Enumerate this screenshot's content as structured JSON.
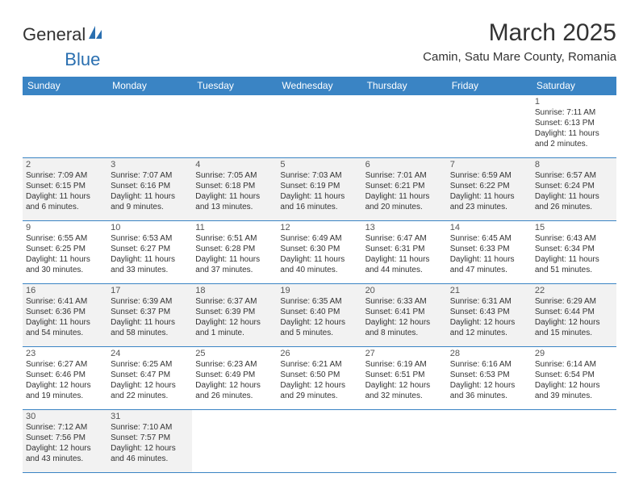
{
  "brand": {
    "part1": "General",
    "part2": "Blue",
    "icon_color": "#2a6fb0"
  },
  "title": "March 2025",
  "location": "Camin, Satu Mare County, Romania",
  "header_bg": "#3a84c4",
  "header_text": "#ffffff",
  "grid_line": "#3a84c4",
  "shade_bg": "#f2f2f2",
  "day_headers": [
    "Sunday",
    "Monday",
    "Tuesday",
    "Wednesday",
    "Thursday",
    "Friday",
    "Saturday"
  ],
  "weeks": [
    [
      {
        "n": "",
        "sr": "",
        "ss": "",
        "dl": "",
        "shade": false,
        "empty": true
      },
      {
        "n": "",
        "sr": "",
        "ss": "",
        "dl": "",
        "shade": false,
        "empty": true
      },
      {
        "n": "",
        "sr": "",
        "ss": "",
        "dl": "",
        "shade": false,
        "empty": true
      },
      {
        "n": "",
        "sr": "",
        "ss": "",
        "dl": "",
        "shade": false,
        "empty": true
      },
      {
        "n": "",
        "sr": "",
        "ss": "",
        "dl": "",
        "shade": false,
        "empty": true
      },
      {
        "n": "",
        "sr": "",
        "ss": "",
        "dl": "",
        "shade": false,
        "empty": true
      },
      {
        "n": "1",
        "sr": "Sunrise: 7:11 AM",
        "ss": "Sunset: 6:13 PM",
        "dl": "Daylight: 11 hours and 2 minutes.",
        "shade": false
      }
    ],
    [
      {
        "n": "2",
        "sr": "Sunrise: 7:09 AM",
        "ss": "Sunset: 6:15 PM",
        "dl": "Daylight: 11 hours and 6 minutes.",
        "shade": true
      },
      {
        "n": "3",
        "sr": "Sunrise: 7:07 AM",
        "ss": "Sunset: 6:16 PM",
        "dl": "Daylight: 11 hours and 9 minutes.",
        "shade": true
      },
      {
        "n": "4",
        "sr": "Sunrise: 7:05 AM",
        "ss": "Sunset: 6:18 PM",
        "dl": "Daylight: 11 hours and 13 minutes.",
        "shade": true
      },
      {
        "n": "5",
        "sr": "Sunrise: 7:03 AM",
        "ss": "Sunset: 6:19 PM",
        "dl": "Daylight: 11 hours and 16 minutes.",
        "shade": true
      },
      {
        "n": "6",
        "sr": "Sunrise: 7:01 AM",
        "ss": "Sunset: 6:21 PM",
        "dl": "Daylight: 11 hours and 20 minutes.",
        "shade": true
      },
      {
        "n": "7",
        "sr": "Sunrise: 6:59 AM",
        "ss": "Sunset: 6:22 PM",
        "dl": "Daylight: 11 hours and 23 minutes.",
        "shade": true
      },
      {
        "n": "8",
        "sr": "Sunrise: 6:57 AM",
        "ss": "Sunset: 6:24 PM",
        "dl": "Daylight: 11 hours and 26 minutes.",
        "shade": true
      }
    ],
    [
      {
        "n": "9",
        "sr": "Sunrise: 6:55 AM",
        "ss": "Sunset: 6:25 PM",
        "dl": "Daylight: 11 hours and 30 minutes.",
        "shade": false
      },
      {
        "n": "10",
        "sr": "Sunrise: 6:53 AM",
        "ss": "Sunset: 6:27 PM",
        "dl": "Daylight: 11 hours and 33 minutes.",
        "shade": false
      },
      {
        "n": "11",
        "sr": "Sunrise: 6:51 AM",
        "ss": "Sunset: 6:28 PM",
        "dl": "Daylight: 11 hours and 37 minutes.",
        "shade": false
      },
      {
        "n": "12",
        "sr": "Sunrise: 6:49 AM",
        "ss": "Sunset: 6:30 PM",
        "dl": "Daylight: 11 hours and 40 minutes.",
        "shade": false
      },
      {
        "n": "13",
        "sr": "Sunrise: 6:47 AM",
        "ss": "Sunset: 6:31 PM",
        "dl": "Daylight: 11 hours and 44 minutes.",
        "shade": false
      },
      {
        "n": "14",
        "sr": "Sunrise: 6:45 AM",
        "ss": "Sunset: 6:33 PM",
        "dl": "Daylight: 11 hours and 47 minutes.",
        "shade": false
      },
      {
        "n": "15",
        "sr": "Sunrise: 6:43 AM",
        "ss": "Sunset: 6:34 PM",
        "dl": "Daylight: 11 hours and 51 minutes.",
        "shade": false
      }
    ],
    [
      {
        "n": "16",
        "sr": "Sunrise: 6:41 AM",
        "ss": "Sunset: 6:36 PM",
        "dl": "Daylight: 11 hours and 54 minutes.",
        "shade": true
      },
      {
        "n": "17",
        "sr": "Sunrise: 6:39 AM",
        "ss": "Sunset: 6:37 PM",
        "dl": "Daylight: 11 hours and 58 minutes.",
        "shade": true
      },
      {
        "n": "18",
        "sr": "Sunrise: 6:37 AM",
        "ss": "Sunset: 6:39 PM",
        "dl": "Daylight: 12 hours and 1 minute.",
        "shade": true
      },
      {
        "n": "19",
        "sr": "Sunrise: 6:35 AM",
        "ss": "Sunset: 6:40 PM",
        "dl": "Daylight: 12 hours and 5 minutes.",
        "shade": true
      },
      {
        "n": "20",
        "sr": "Sunrise: 6:33 AM",
        "ss": "Sunset: 6:41 PM",
        "dl": "Daylight: 12 hours and 8 minutes.",
        "shade": true
      },
      {
        "n": "21",
        "sr": "Sunrise: 6:31 AM",
        "ss": "Sunset: 6:43 PM",
        "dl": "Daylight: 12 hours and 12 minutes.",
        "shade": true
      },
      {
        "n": "22",
        "sr": "Sunrise: 6:29 AM",
        "ss": "Sunset: 6:44 PM",
        "dl": "Daylight: 12 hours and 15 minutes.",
        "shade": true
      }
    ],
    [
      {
        "n": "23",
        "sr": "Sunrise: 6:27 AM",
        "ss": "Sunset: 6:46 PM",
        "dl": "Daylight: 12 hours and 19 minutes.",
        "shade": false
      },
      {
        "n": "24",
        "sr": "Sunrise: 6:25 AM",
        "ss": "Sunset: 6:47 PM",
        "dl": "Daylight: 12 hours and 22 minutes.",
        "shade": false
      },
      {
        "n": "25",
        "sr": "Sunrise: 6:23 AM",
        "ss": "Sunset: 6:49 PM",
        "dl": "Daylight: 12 hours and 26 minutes.",
        "shade": false
      },
      {
        "n": "26",
        "sr": "Sunrise: 6:21 AM",
        "ss": "Sunset: 6:50 PM",
        "dl": "Daylight: 12 hours and 29 minutes.",
        "shade": false
      },
      {
        "n": "27",
        "sr": "Sunrise: 6:19 AM",
        "ss": "Sunset: 6:51 PM",
        "dl": "Daylight: 12 hours and 32 minutes.",
        "shade": false
      },
      {
        "n": "28",
        "sr": "Sunrise: 6:16 AM",
        "ss": "Sunset: 6:53 PM",
        "dl": "Daylight: 12 hours and 36 minutes.",
        "shade": false
      },
      {
        "n": "29",
        "sr": "Sunrise: 6:14 AM",
        "ss": "Sunset: 6:54 PM",
        "dl": "Daylight: 12 hours and 39 minutes.",
        "shade": false
      }
    ],
    [
      {
        "n": "30",
        "sr": "Sunrise: 7:12 AM",
        "ss": "Sunset: 7:56 PM",
        "dl": "Daylight: 12 hours and 43 minutes.",
        "shade": true
      },
      {
        "n": "31",
        "sr": "Sunrise: 7:10 AM",
        "ss": "Sunset: 7:57 PM",
        "dl": "Daylight: 12 hours and 46 minutes.",
        "shade": true
      },
      {
        "n": "",
        "sr": "",
        "ss": "",
        "dl": "",
        "shade": false,
        "empty": true
      },
      {
        "n": "",
        "sr": "",
        "ss": "",
        "dl": "",
        "shade": false,
        "empty": true
      },
      {
        "n": "",
        "sr": "",
        "ss": "",
        "dl": "",
        "shade": false,
        "empty": true
      },
      {
        "n": "",
        "sr": "",
        "ss": "",
        "dl": "",
        "shade": false,
        "empty": true
      },
      {
        "n": "",
        "sr": "",
        "ss": "",
        "dl": "",
        "shade": false,
        "empty": true
      }
    ]
  ]
}
